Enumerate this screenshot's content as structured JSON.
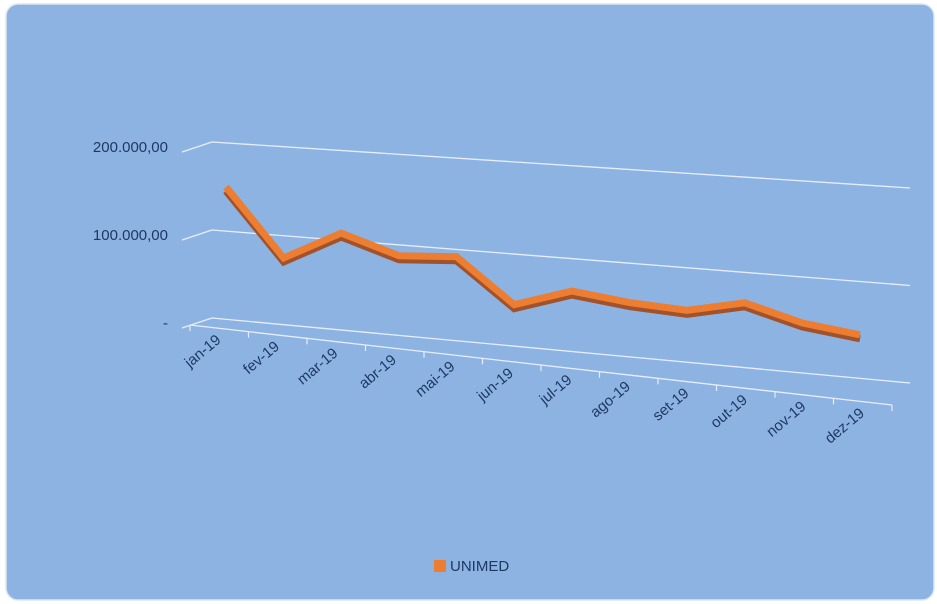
{
  "chart_data": {
    "type": "line3d",
    "categories": [
      "jan-19",
      "fev-19",
      "mar-19",
      "abr-19",
      "mai-19",
      "jun-19",
      "jul-19",
      "ago-19",
      "set-19",
      "out-19",
      "nov-19",
      "dez-19"
    ],
    "series": [
      {
        "name": "UNIMED",
        "color": "#ed7d31",
        "values": [
          150000,
          75000,
          108000,
          88000,
          92000,
          45000,
          65000,
          58000,
          55000,
          68000,
          52000,
          45000
        ]
      }
    ],
    "ylim": [
      0,
      200000
    ],
    "yticks": [
      {
        "value": 0,
        "label": "-"
      },
      {
        "value": 100000,
        "label": "100.000,00"
      },
      {
        "value": 200000,
        "label": "200.000,00"
      }
    ],
    "grid": true,
    "legend": "bottom"
  }
}
